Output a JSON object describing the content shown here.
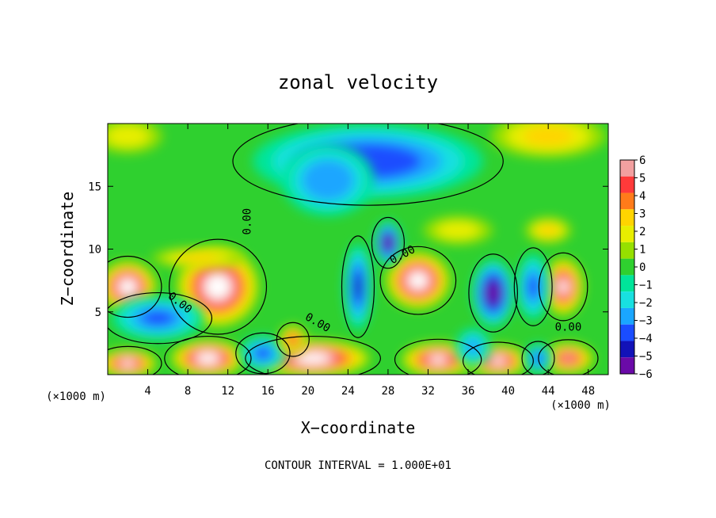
{
  "chart_data": {
    "type": "heatmap",
    "title": "zonal velocity",
    "xlabel": "X−coordinate",
    "ylabel": "Z−coordinate",
    "x_unit_left": "(×1000 m)",
    "x_unit_right": "(×1000 m)",
    "footer": "CONTOUR INTERVAL = 1.000E+01",
    "xlim": [
      0,
      50
    ],
    "ylim": [
      0,
      20
    ],
    "x_ticks": [
      4,
      8,
      12,
      16,
      20,
      24,
      28,
      32,
      36,
      40,
      44,
      48
    ],
    "y_ticks": [
      5,
      10,
      15
    ],
    "colorbar": {
      "ticks": [
        6,
        5,
        4,
        3,
        2,
        1,
        0,
        -1,
        -2,
        -3,
        -4,
        -5,
        -6
      ],
      "labels": [
        "6",
        "5",
        "4",
        "3",
        "2",
        "1",
        "0",
        "−1",
        "−2",
        "−3",
        "−4",
        "−5",
        "−6"
      ],
      "colors": [
        "#f2a0a0",
        "#ff3a3a",
        "#ff7b1a",
        "#ffd400",
        "#e8ee00",
        "#96e000",
        "#2fd02f",
        "#00e59a",
        "#18e0e0",
        "#1aa6ff",
        "#1a4dff",
        "#1212b8",
        "#6a0aa8"
      ]
    },
    "contour_labels": [
      {
        "text": "0.00",
        "x": 14.3,
        "y": 12.2,
        "angle": -90
      },
      {
        "text": "0.00",
        "x": 7.0,
        "y": 5.5,
        "angle": 38
      },
      {
        "text": "0.00",
        "x": 20.8,
        "y": 3.9,
        "angle": 30
      },
      {
        "text": "0.00",
        "x": 29.6,
        "y": 9.3,
        "angle": -28
      },
      {
        "text": "0.00",
        "x": 46.0,
        "y": 3.5,
        "angle": 0
      }
    ],
    "features": [
      {
        "kind": "negative",
        "x": 26,
        "y": 17,
        "rx": 10,
        "ry": 2.6,
        "v": -4.2
      },
      {
        "kind": "negative",
        "x": 22,
        "y": 15.5,
        "rx": 4,
        "ry": 2.5,
        "v": -3.2
      },
      {
        "kind": "positive",
        "x": 11,
        "y": 7,
        "rx": 3.6,
        "ry": 2.8,
        "v": 8
      },
      {
        "kind": "positive",
        "x": 31,
        "y": 7.5,
        "rx": 2.8,
        "ry": 2.0,
        "v": 8
      },
      {
        "kind": "positive",
        "x": 2,
        "y": 7,
        "rx": 2.5,
        "ry": 1.8,
        "v": 8
      },
      {
        "kind": "positive",
        "x": 45.5,
        "y": 7,
        "rx": 1.8,
        "ry": 2.0,
        "v": 7
      },
      {
        "kind": "positive",
        "x": 10,
        "y": 1.3,
        "rx": 3.2,
        "ry": 1.3,
        "v": 8
      },
      {
        "kind": "positive",
        "x": 20.5,
        "y": 1.3,
        "rx": 5,
        "ry": 1.3,
        "v": 8
      },
      {
        "kind": "positive",
        "x": 33,
        "y": 1.2,
        "rx": 3.2,
        "ry": 1.2,
        "v": 7
      },
      {
        "kind": "positive",
        "x": 39,
        "y": 1.1,
        "rx": 2.6,
        "ry": 1.1,
        "v": 7
      },
      {
        "kind": "positive",
        "x": 46,
        "y": 1.3,
        "rx": 2.2,
        "ry": 1.1,
        "v": 6
      },
      {
        "kind": "positive",
        "x": 2,
        "y": 0.9,
        "rx": 2.5,
        "ry": 1.0,
        "v": 7
      },
      {
        "kind": "negative",
        "x": 38.5,
        "y": 6.5,
        "rx": 1.8,
        "ry": 2.3,
        "v": -7
      },
      {
        "kind": "negative",
        "x": 28,
        "y": 10.5,
        "rx": 1.2,
        "ry": 1.5,
        "v": -7
      },
      {
        "kind": "negative",
        "x": 25,
        "y": 7,
        "rx": 1.2,
        "ry": 3.0,
        "v": -5
      },
      {
        "kind": "negative",
        "x": 5,
        "y": 4.5,
        "rx": 4,
        "ry": 1.5,
        "v": -4
      },
      {
        "kind": "negative",
        "x": 15.5,
        "y": 1.7,
        "rx": 2.0,
        "ry": 1.2,
        "v": -4
      },
      {
        "kind": "negative",
        "x": 42.5,
        "y": 7,
        "rx": 1.4,
        "ry": 2.3,
        "v": -4
      },
      {
        "kind": "negative",
        "x": 43,
        "y": 1.3,
        "rx": 1.2,
        "ry": 1.0,
        "v": -4
      },
      {
        "kind": "negative",
        "x": 36.5,
        "y": 2.2,
        "rx": 1.5,
        "ry": 1.3,
        "v": -3
      },
      {
        "kind": "positive",
        "x": 44,
        "y": 19,
        "rx": 5,
        "ry": 1.5,
        "v": 3
      },
      {
        "kind": "positive",
        "x": 2,
        "y": 19,
        "rx": 3,
        "ry": 1.2,
        "v": 1.7
      },
      {
        "kind": "positive",
        "x": 44,
        "y": 11.5,
        "rx": 2,
        "ry": 0.9,
        "v": 3
      },
      {
        "kind": "positive",
        "x": 35,
        "y": 11.5,
        "rx": 3,
        "ry": 1.0,
        "v": 2
      },
      {
        "kind": "positive",
        "x": 9,
        "y": 9.3,
        "rx": 4,
        "ry": 0.7,
        "v": 3
      },
      {
        "kind": "positive",
        "x": 18.5,
        "y": 2.8,
        "rx": 1.2,
        "ry": 1.0,
        "v": 5
      }
    ]
  }
}
